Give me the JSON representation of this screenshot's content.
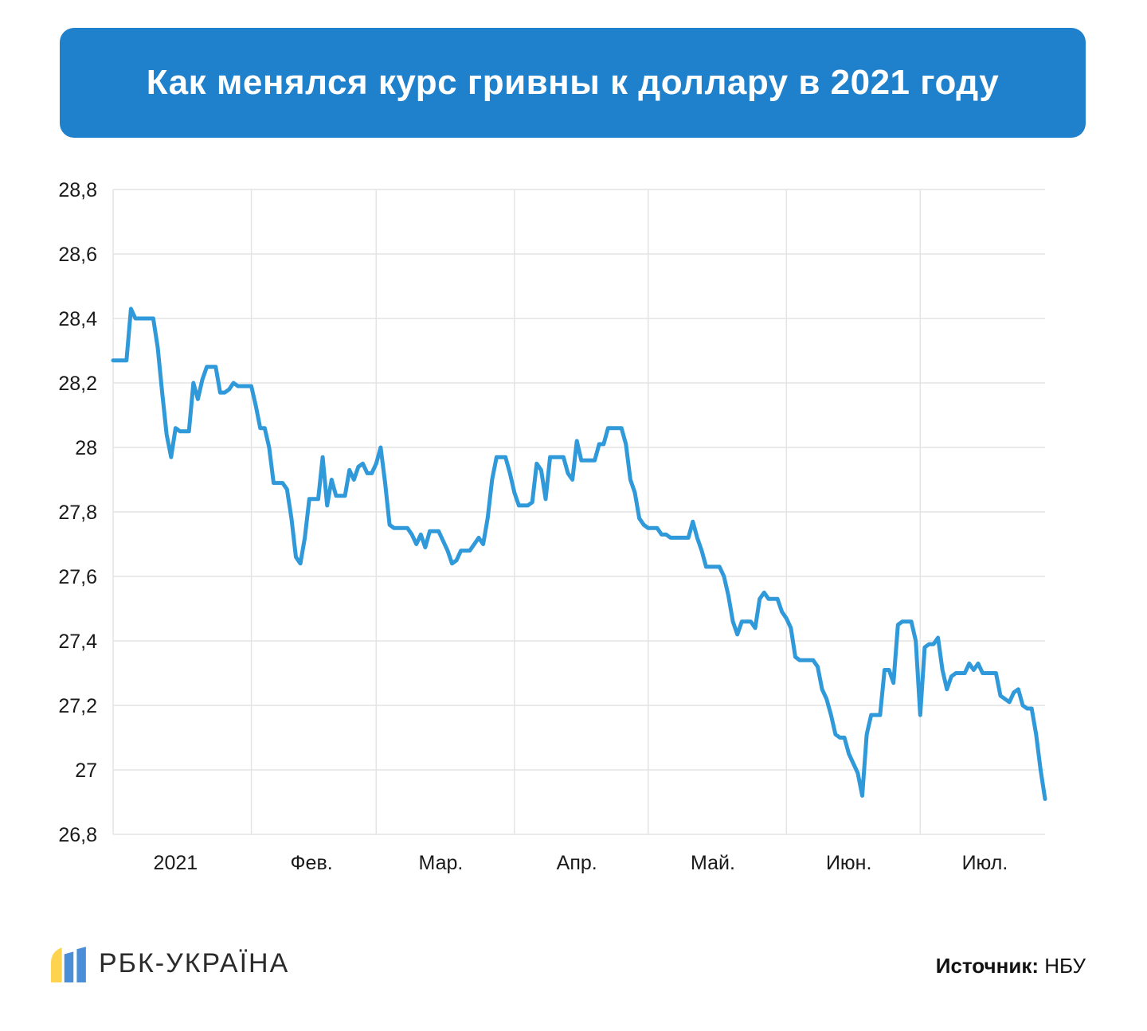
{
  "header": {
    "title": "Как менялся курс гривны к доллару в 2021 году"
  },
  "colors": {
    "header_bg": "#1F80CB",
    "header_text": "#FFFFFF",
    "line": "#2F99D9",
    "grid": "#E4E4E4",
    "axis_text": "#1A1A1A"
  },
  "chart_data": {
    "type": "line",
    "title": "Как менялся курс гривны к доллару в 2021 году",
    "xlabel": "",
    "ylabel": "",
    "ylim": [
      26.8,
      28.8
    ],
    "ytick_step": 0.2,
    "grid": true,
    "legend_position": "none",
    "y_ticks": [
      {
        "value": 28.8,
        "label": "28,8"
      },
      {
        "value": 28.6,
        "label": "28,6"
      },
      {
        "value": 28.4,
        "label": "28,4"
      },
      {
        "value": 28.2,
        "label": "28,2"
      },
      {
        "value": 28.0,
        "label": "28"
      },
      {
        "value": 27.8,
        "label": "27,8"
      },
      {
        "value": 27.6,
        "label": "27,6"
      },
      {
        "value": 27.4,
        "label": "27,4"
      },
      {
        "value": 27.2,
        "label": "27,2"
      },
      {
        "value": 27.0,
        "label": "27"
      },
      {
        "value": 26.8,
        "label": "26,8"
      }
    ],
    "x_labels": [
      {
        "day": 14,
        "label": "2021"
      },
      {
        "day": 44.5,
        "label": "Фев."
      },
      {
        "day": 73.5,
        "label": "Мар."
      },
      {
        "day": 104,
        "label": "Апр."
      },
      {
        "day": 134.5,
        "label": "Май."
      },
      {
        "day": 165,
        "label": "Июн."
      },
      {
        "day": 195.5,
        "label": "Июл."
      }
    ],
    "month_start_days": [
      31,
      59,
      90,
      120,
      151,
      181
    ],
    "values": [
      28.27,
      28.27,
      28.27,
      28.27,
      28.43,
      28.4,
      28.4,
      28.4,
      28.4,
      28.4,
      28.31,
      28.17,
      28.04,
      27.97,
      28.06,
      28.05,
      28.05,
      28.05,
      28.2,
      28.15,
      28.21,
      28.25,
      28.25,
      28.25,
      28.17,
      28.17,
      28.18,
      28.2,
      28.19,
      28.19,
      28.19,
      28.19,
      28.13,
      28.06,
      28.06,
      28.0,
      27.89,
      27.89,
      27.89,
      27.87,
      27.78,
      27.66,
      27.64,
      27.72,
      27.84,
      27.84,
      27.84,
      27.97,
      27.82,
      27.9,
      27.85,
      27.85,
      27.85,
      27.93,
      27.9,
      27.94,
      27.95,
      27.92,
      27.92,
      27.95,
      28.0,
      27.89,
      27.76,
      27.75,
      27.75,
      27.75,
      27.75,
      27.73,
      27.7,
      27.73,
      27.69,
      27.74,
      27.74,
      27.74,
      27.71,
      27.68,
      27.64,
      27.65,
      27.68,
      27.68,
      27.68,
      27.7,
      27.72,
      27.7,
      27.78,
      27.9,
      27.97,
      27.97,
      27.97,
      27.92,
      27.86,
      27.82,
      27.82,
      27.82,
      27.83,
      27.95,
      27.93,
      27.84,
      27.97,
      27.97,
      27.97,
      27.97,
      27.92,
      27.9,
      28.02,
      27.96,
      27.96,
      27.96,
      27.96,
      28.01,
      28.01,
      28.06,
      28.06,
      28.06,
      28.06,
      28.01,
      27.9,
      27.86,
      27.78,
      27.76,
      27.75,
      27.75,
      27.75,
      27.73,
      27.73,
      27.72,
      27.72,
      27.72,
      27.72,
      27.72,
      27.77,
      27.72,
      27.68,
      27.63,
      27.63,
      27.63,
      27.63,
      27.6,
      27.54,
      27.46,
      27.42,
      27.46,
      27.46,
      27.46,
      27.44,
      27.53,
      27.55,
      27.53,
      27.53,
      27.53,
      27.49,
      27.47,
      27.44,
      27.35,
      27.34,
      27.34,
      27.34,
      27.34,
      27.32,
      27.25,
      27.22,
      27.17,
      27.11,
      27.1,
      27.1,
      27.05,
      27.02,
      26.99,
      26.92,
      27.11,
      27.17,
      27.17,
      27.17,
      27.31,
      27.31,
      27.27,
      27.45,
      27.46,
      27.46,
      27.46,
      27.4,
      27.17,
      27.38,
      27.39,
      27.39,
      27.41,
      27.31,
      27.25,
      27.29,
      27.3,
      27.3,
      27.3,
      27.33,
      27.31,
      27.33,
      27.3,
      27.3,
      27.3,
      27.3,
      27.23,
      27.22,
      27.21,
      27.24,
      27.25,
      27.2,
      27.19,
      27.19,
      27.11,
      27.0,
      26.91
    ]
  },
  "footer": {
    "logo_text": "РБК-УКРАЇНА",
    "source_label": "Источник:",
    "source_value": "НБУ",
    "logo_colors": {
      "yellow": "#FFD34E",
      "blue": "#4A8ED7"
    }
  }
}
